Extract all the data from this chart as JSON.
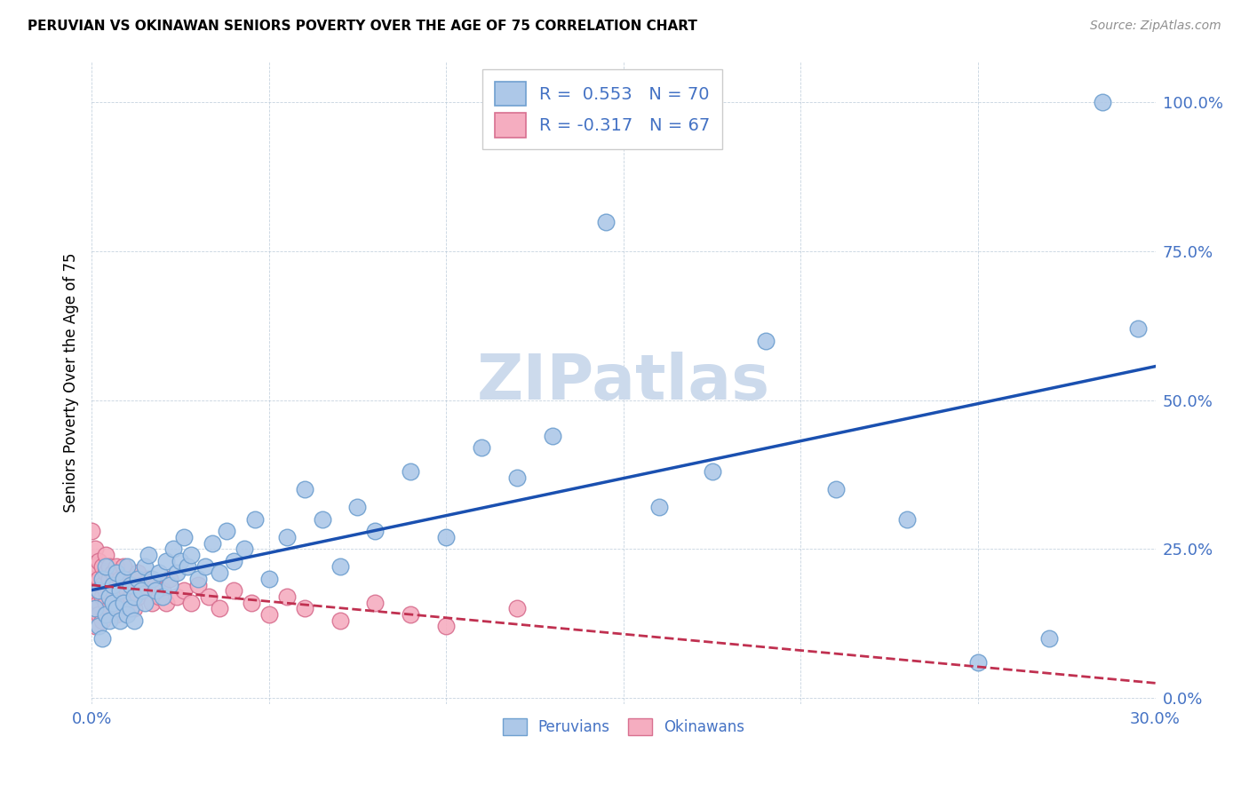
{
  "title": "PERUVIAN VS OKINAWAN SENIORS POVERTY OVER THE AGE OF 75 CORRELATION CHART",
  "source": "Source: ZipAtlas.com",
  "ylabel": "Seniors Poverty Over the Age of 75",
  "xlim": [
    0.0,
    0.3
  ],
  "ylim": [
    -0.01,
    1.07
  ],
  "yticks": [
    0.0,
    0.25,
    0.5,
    0.75,
    1.0
  ],
  "ytick_labels": [
    "0.0%",
    "25.0%",
    "50.0%",
    "75.0%",
    "100.0%"
  ],
  "xticks": [
    0.0,
    0.05,
    0.1,
    0.15,
    0.2,
    0.25,
    0.3
  ],
  "xtick_labels": [
    "0.0%",
    "",
    "",
    "",
    "",
    "",
    "30.0%"
  ],
  "peruvian_color": "#adc8e8",
  "okinawan_color": "#f5adc0",
  "peruvian_edge": "#6fa0d0",
  "okinawan_edge": "#d87090",
  "trendline_peruvian_color": "#1a50b0",
  "trendline_okinawan_color": "#c03050",
  "R_peruvian": 0.553,
  "N_peruvian": 70,
  "R_okinawan": -0.317,
  "N_okinawan": 67,
  "watermark_text": "ZIPatlas",
  "watermark_color": "#ccdaec",
  "legend_label_1": "Peruvians",
  "legend_label_2": "Okinawans",
  "axis_label_color": "#4472c4",
  "peruvian_x": [
    0.001,
    0.002,
    0.002,
    0.003,
    0.003,
    0.004,
    0.004,
    0.005,
    0.005,
    0.006,
    0.006,
    0.007,
    0.007,
    0.008,
    0.008,
    0.009,
    0.009,
    0.01,
    0.01,
    0.011,
    0.011,
    0.012,
    0.012,
    0.013,
    0.014,
    0.015,
    0.015,
    0.016,
    0.017,
    0.018,
    0.019,
    0.02,
    0.021,
    0.022,
    0.023,
    0.024,
    0.025,
    0.026,
    0.027,
    0.028,
    0.03,
    0.032,
    0.034,
    0.036,
    0.038,
    0.04,
    0.043,
    0.046,
    0.05,
    0.055,
    0.06,
    0.065,
    0.07,
    0.075,
    0.08,
    0.09,
    0.1,
    0.11,
    0.12,
    0.13,
    0.145,
    0.16,
    0.175,
    0.19,
    0.21,
    0.23,
    0.25,
    0.27,
    0.285,
    0.295
  ],
  "peruvian_y": [
    0.15,
    0.12,
    0.18,
    0.1,
    0.2,
    0.14,
    0.22,
    0.13,
    0.17,
    0.16,
    0.19,
    0.15,
    0.21,
    0.13,
    0.18,
    0.16,
    0.2,
    0.14,
    0.22,
    0.15,
    0.19,
    0.13,
    0.17,
    0.2,
    0.18,
    0.16,
    0.22,
    0.24,
    0.2,
    0.18,
    0.21,
    0.17,
    0.23,
    0.19,
    0.25,
    0.21,
    0.23,
    0.27,
    0.22,
    0.24,
    0.2,
    0.22,
    0.26,
    0.21,
    0.28,
    0.23,
    0.25,
    0.3,
    0.2,
    0.27,
    0.35,
    0.3,
    0.22,
    0.32,
    0.28,
    0.38,
    0.27,
    0.42,
    0.37,
    0.44,
    0.8,
    0.32,
    0.38,
    0.6,
    0.35,
    0.3,
    0.06,
    0.1,
    1.0,
    0.62
  ],
  "okinawan_x": [
    0.0,
    0.0,
    0.001,
    0.001,
    0.001,
    0.001,
    0.001,
    0.002,
    0.002,
    0.002,
    0.002,
    0.002,
    0.003,
    0.003,
    0.003,
    0.003,
    0.004,
    0.004,
    0.004,
    0.004,
    0.005,
    0.005,
    0.005,
    0.006,
    0.006,
    0.006,
    0.007,
    0.007,
    0.007,
    0.008,
    0.008,
    0.008,
    0.009,
    0.009,
    0.01,
    0.01,
    0.011,
    0.011,
    0.012,
    0.012,
    0.013,
    0.013,
    0.014,
    0.015,
    0.016,
    0.017,
    0.018,
    0.019,
    0.02,
    0.021,
    0.022,
    0.024,
    0.026,
    0.028,
    0.03,
    0.033,
    0.036,
    0.04,
    0.045,
    0.05,
    0.055,
    0.06,
    0.07,
    0.08,
    0.09,
    0.1,
    0.12
  ],
  "okinawan_y": [
    0.2,
    0.28,
    0.15,
    0.22,
    0.18,
    0.25,
    0.12,
    0.2,
    0.16,
    0.23,
    0.18,
    0.14,
    0.22,
    0.17,
    0.19,
    0.13,
    0.21,
    0.16,
    0.18,
    0.24,
    0.2,
    0.15,
    0.22,
    0.18,
    0.16,
    0.21,
    0.19,
    0.14,
    0.22,
    0.17,
    0.2,
    0.15,
    0.19,
    0.22,
    0.18,
    0.16,
    0.2,
    0.17,
    0.19,
    0.15,
    0.21,
    0.17,
    0.19,
    0.18,
    0.2,
    0.16,
    0.19,
    0.17,
    0.18,
    0.16,
    0.2,
    0.17,
    0.18,
    0.16,
    0.19,
    0.17,
    0.15,
    0.18,
    0.16,
    0.14,
    0.17,
    0.15,
    0.13,
    0.16,
    0.14,
    0.12,
    0.15
  ]
}
